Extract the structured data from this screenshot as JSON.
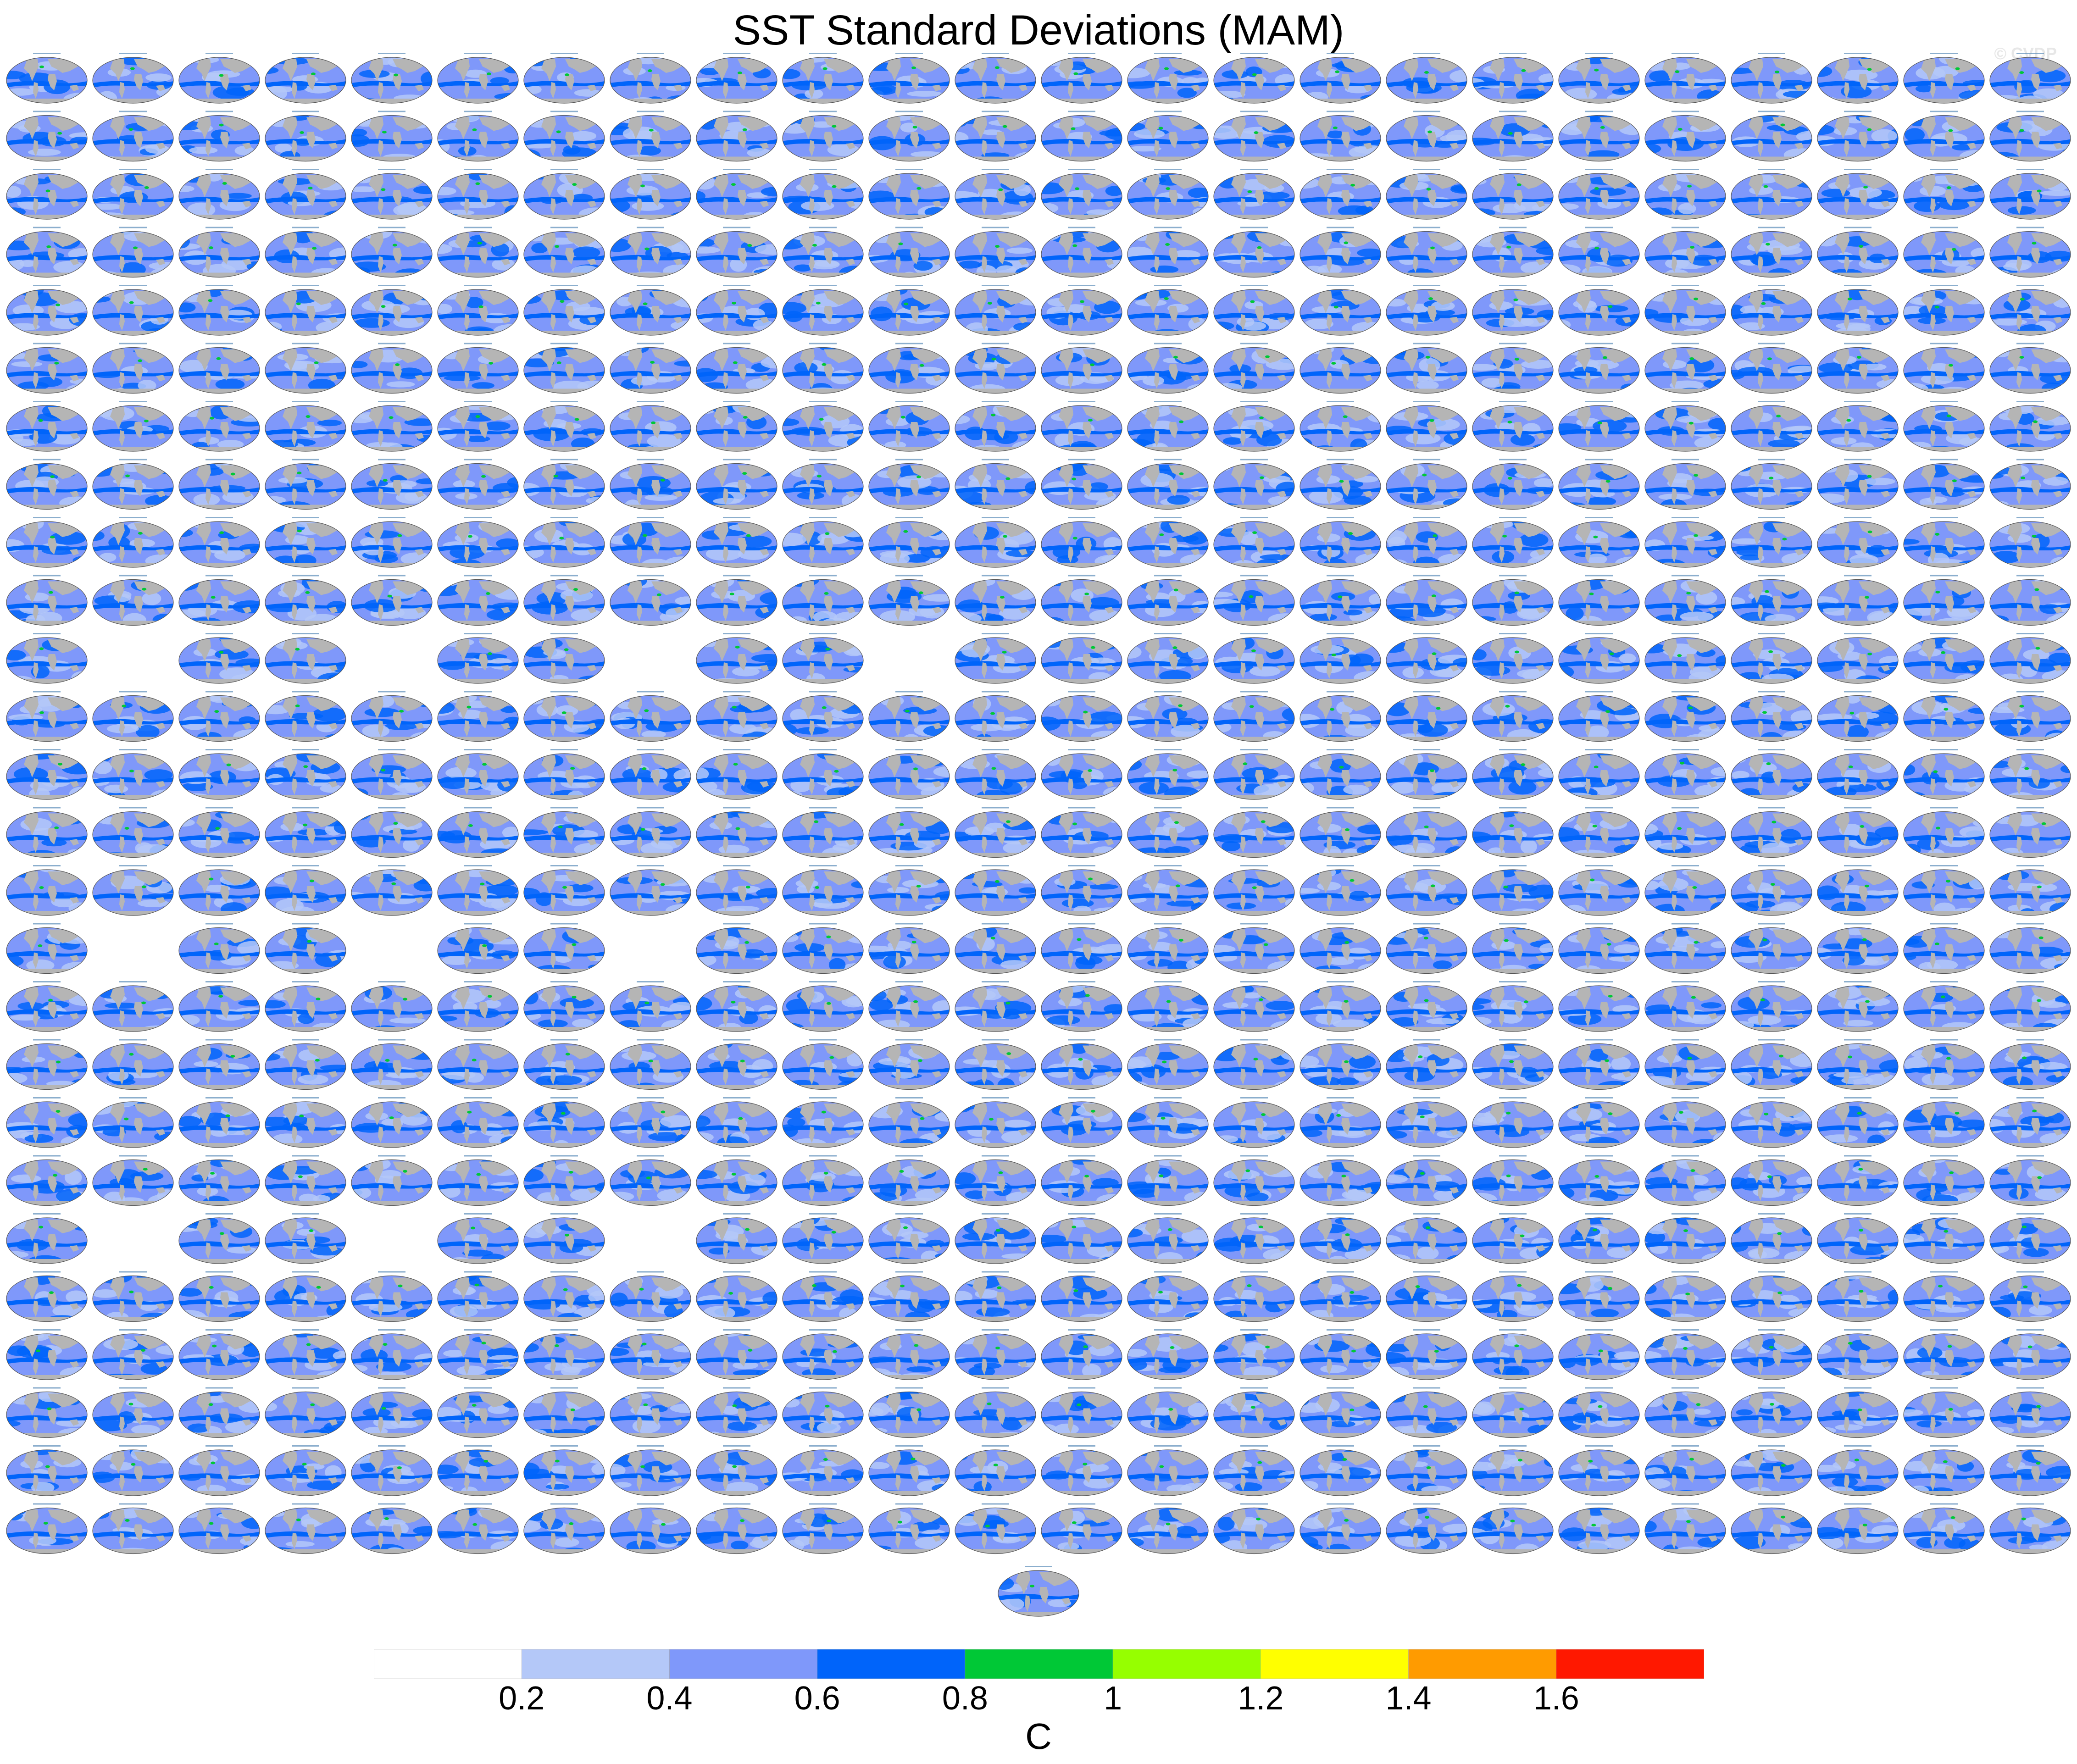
{
  "title": "SST Standard Deviations (MAM)",
  "watermark": "© CVDP",
  "grid": {
    "columns": 24,
    "rows": 26,
    "missing_cells": [
      [
        10,
        1
      ],
      [
        10,
        4
      ],
      [
        10,
        7
      ],
      [
        10,
        10
      ],
      [
        15,
        1
      ],
      [
        15,
        4
      ],
      [
        15,
        7
      ],
      [
        20,
        1
      ],
      [
        20,
        4
      ],
      [
        20,
        7
      ]
    ],
    "extra_bottom_panel": true
  },
  "colorbar": {
    "colors": [
      "#ffffff",
      "#b4c8f8",
      "#7f98fa",
      "#0064fa",
      "#00c836",
      "#96ff00",
      "#ffff00",
      "#ff9b00",
      "#ff1800"
    ],
    "labels": [
      "0.2",
      "0.4",
      "0.6",
      "0.8",
      "1",
      "1.2",
      "1.4",
      "1.6"
    ],
    "units": "C"
  },
  "map_colors": {
    "land": "#b5b5b5",
    "ocean_low": "#b4c8f8",
    "ocean_mid": "#7f98fa",
    "ocean_high": "#0064fa",
    "hotspot": "#00c836"
  }
}
